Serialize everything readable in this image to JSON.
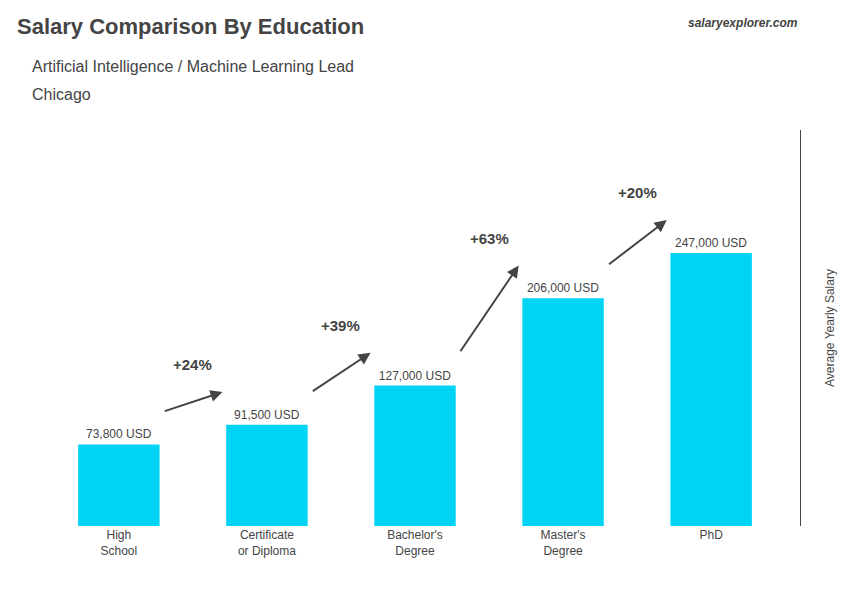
{
  "chart_data": {
    "type": "bar",
    "title": "Salary Comparison By Education",
    "subtitle": [
      "Artificial Intelligence / Machine Learning Lead",
      "Chicago"
    ],
    "ylabel": "Average Yearly Salary",
    "categories": [
      "High\nSchool",
      "Certificate\nor Diploma",
      "Bachelor's\nDegree",
      "Master's\nDegree",
      "PhD"
    ],
    "values": [
      73800,
      91500,
      127000,
      206000,
      247000
    ],
    "value_labels": [
      "73,800 USD",
      "91,500 USD",
      "127,000 USD",
      "206,000 USD",
      "247,000 USD"
    ],
    "data_labels": true,
    "color": "#00d4f5",
    "ylim": [
      0,
      358150
    ],
    "yticks": [],
    "tick_labels": "x",
    "grid": false,
    "annotations": [
      {
        "text": "+24%",
        "from": 0,
        "to": 1
      },
      {
        "text": "+39%",
        "from": 1,
        "to": 2
      },
      {
        "text": "+63%",
        "from": 2,
        "to": 3
      },
      {
        "text": "+20%",
        "from": 3,
        "to": 4
      },
      {
        "text": "salaryexplorer.com"
      }
    ]
  }
}
